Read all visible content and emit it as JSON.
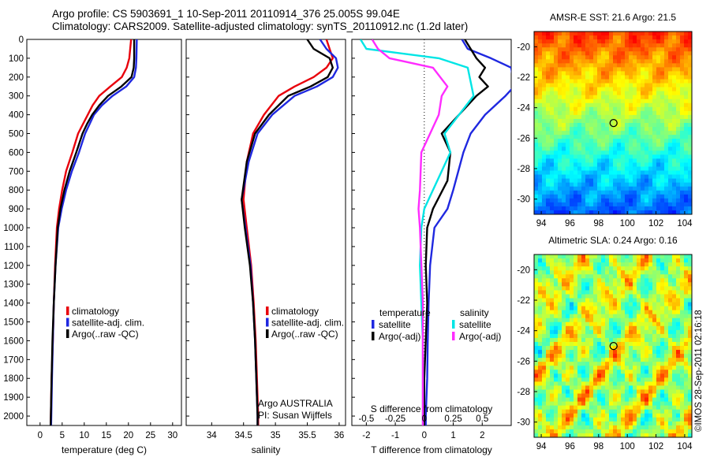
{
  "header": {
    "line1": "Argo profile: CS 5903691_1 10-Sep-2011 20110914_376 25.005S 99.04E",
    "line2": "Climatology: CARS2009. Satellite-adjusted climatology: synTS_20110912.nc (1.2d later)"
  },
  "stamp": "©IMOS 28-Sep-2011 02:16:18",
  "colors": {
    "climatology": "#e8000b",
    "satellite": "#1f28e0",
    "argo": "#000000",
    "sat_salinity": "#00e5e5",
    "argo_salinity": "#ff2cff"
  },
  "chart_data": [
    {
      "type": "line",
      "id": "temperature",
      "xlabel": "temperature (deg C)",
      "ylabel": "",
      "xlim": [
        -3,
        32
      ],
      "ylim": [
        2050,
        0
      ],
      "xticks": [
        "0",
        "5",
        "10",
        "15",
        "20",
        "25",
        "30"
      ],
      "yticks": [
        "0",
        "100",
        "200",
        "300",
        "400",
        "500",
        "600",
        "700",
        "800",
        "900",
        "1000",
        "1100",
        "1200",
        "1300",
        "1400",
        "1500",
        "1600",
        "1700",
        "1800",
        "1900",
        "2000"
      ],
      "legend": [
        "climatology",
        "satellite-adj. clim.",
        "Argo(..raw -QC)"
      ],
      "series": [
        {
          "name": "climatology",
          "x": [
            20.6,
            20.2,
            19.6,
            18.5,
            15.9,
            13.4,
            11.9,
            10.8,
            9.7,
            8.6,
            7.3,
            5.9,
            5.0,
            4.3,
            3.8,
            3.4,
            3.1,
            2.9,
            2.6,
            2.4
          ],
          "y": [
            0,
            100,
            150,
            200,
            250,
            300,
            350,
            400,
            450,
            500,
            600,
            700,
            800,
            900,
            1000,
            1200,
            1400,
            1600,
            1800,
            2050
          ]
        },
        {
          "name": "satellite-adj. clim.",
          "x": [
            21.9,
            21.8,
            21.7,
            21.3,
            19.5,
            16.4,
            14.0,
            12.2,
            11.2,
            10.2,
            8.8,
            7.2,
            5.9,
            4.9,
            4.1,
            3.5,
            3.1,
            2.9,
            2.7,
            2.5
          ],
          "y": [
            0,
            100,
            150,
            200,
            250,
            300,
            350,
            400,
            450,
            500,
            600,
            700,
            800,
            900,
            1000,
            1200,
            1400,
            1600,
            1800,
            2050
          ]
        },
        {
          "name": "Argo(..raw -QC)",
          "x": [
            21.3,
            21.3,
            21.2,
            20.7,
            18.4,
            15.4,
            13.4,
            11.8,
            10.6,
            9.6,
            8.2,
            6.7,
            5.5,
            4.6,
            4.0,
            3.5,
            3.1,
            2.8,
            2.6,
            2.4
          ],
          "y": [
            0,
            100,
            150,
            200,
            250,
            300,
            350,
            400,
            450,
            500,
            600,
            700,
            800,
            900,
            1000,
            1200,
            1400,
            1600,
            1800,
            2050
          ]
        }
      ]
    },
    {
      "type": "line",
      "id": "salinity",
      "xlabel": "salinity",
      "ylabel": "",
      "xlim": [
        33.6,
        36.1
      ],
      "ylim": [
        2050,
        0
      ],
      "xticks": [
        "34",
        "34.5",
        "35",
        "35.5",
        "36"
      ],
      "legend": [
        "climatology",
        "satellite-adj. clim.",
        "Argo(..raw -QC)"
      ],
      "annotation": [
        "Argo AUSTRALIA",
        "PI: Susan Wijffels"
      ],
      "series": [
        {
          "name": "climatology",
          "x": [
            35.8,
            35.85,
            35.9,
            35.8,
            35.6,
            35.3,
            35.05,
            34.82,
            34.65,
            34.55,
            34.5,
            34.55,
            34.62,
            34.66,
            34.69,
            34.71,
            34.73,
            34.73
          ],
          "y": [
            0,
            50,
            100,
            150,
            200,
            250,
            300,
            400,
            500,
            650,
            850,
            1000,
            1200,
            1400,
            1600,
            1800,
            2000,
            2050
          ]
        },
        {
          "name": "satellite-adj. clim.",
          "x": [
            35.7,
            35.8,
            35.95,
            35.98,
            35.9,
            35.65,
            35.3,
            34.95,
            34.72,
            34.58,
            34.47,
            34.53,
            34.61,
            34.65,
            34.68,
            34.7,
            34.72,
            34.72
          ],
          "y": [
            0,
            50,
            100,
            150,
            200,
            250,
            300,
            400,
            500,
            650,
            850,
            1000,
            1200,
            1400,
            1600,
            1800,
            2000,
            2050
          ]
        },
        {
          "name": "Argo(..raw -QC)",
          "x": [
            35.5,
            35.6,
            35.85,
            35.9,
            35.82,
            35.55,
            35.2,
            34.9,
            34.68,
            34.55,
            34.47,
            34.52,
            34.6,
            34.65,
            34.68,
            34.7,
            34.72,
            34.72
          ],
          "y": [
            0,
            50,
            100,
            150,
            200,
            250,
            300,
            400,
            500,
            650,
            850,
            1000,
            1200,
            1400,
            1600,
            1800,
            2000,
            2050
          ]
        }
      ]
    },
    {
      "type": "line",
      "id": "difference",
      "xlabel": "T difference from climatology",
      "top_label": "S difference from climatology",
      "xlim": [
        -2.5,
        3.0
      ],
      "ylim": [
        2050,
        0
      ],
      "xticks": [
        "-2",
        "-1",
        "0",
        "1",
        "2"
      ],
      "top_ticks": [
        "-0.5",
        "-0.25",
        "0",
        "0.25",
        "0.5"
      ],
      "legend_titles": [
        "temperature",
        "salinity"
      ],
      "legend": [
        "satellite",
        "Argo(-adj)",
        "satellite",
        "Argo(-adj)"
      ],
      "series": [
        {
          "name": "satellite",
          "x": [
            1.3,
            1.5,
            2.3,
            3.0,
            3.1,
            2.8,
            2.1,
            1.6,
            1.35,
            1.0,
            0.8,
            0.35,
            0.2,
            0.15,
            0.12,
            0.1,
            0.05,
            0.05
          ],
          "y": [
            0,
            50,
            100,
            150,
            250,
            300,
            400,
            500,
            600,
            800,
            900,
            1000,
            1200,
            1400,
            1600,
            1800,
            2000,
            2050
          ]
        },
        {
          "name": "Argo(-adj)",
          "x": [
            1.4,
            1.6,
            1.8,
            2.1,
            1.9,
            2.2,
            1.8,
            1.2,
            0.6,
            0.9,
            0.8,
            0.3,
            0.1,
            0.05,
            0.1,
            0.05,
            0.0,
            0.0
          ],
          "y": [
            0,
            50,
            100,
            150,
            200,
            250,
            300,
            400,
            500,
            600,
            750,
            900,
            1000,
            1200,
            1400,
            1600,
            1800,
            2050
          ]
        },
        {
          "name": "satellite",
          "x": [
            -2.2,
            -2.0,
            0.5,
            1.5,
            1.7,
            1.2,
            0.7,
            0.9,
            0.6,
            0.3,
            0.0,
            -0.1,
            -0.15,
            -0.1,
            -0.05,
            -0.05,
            -0.05
          ],
          "y": [
            0,
            50,
            100,
            150,
            300,
            400,
            500,
            600,
            700,
            800,
            900,
            1000,
            1200,
            1400,
            1600,
            1800,
            2050
          ]
        },
        {
          "name": "Argo(-adj)",
          "x": [
            -1.8,
            -1.6,
            -1.2,
            0.3,
            0.8,
            0.6,
            0.5,
            0.2,
            -0.1,
            -0.15,
            -0.2,
            -0.15,
            -0.1,
            -0.05,
            -0.05,
            -0.05,
            -0.05
          ],
          "y": [
            0,
            50,
            100,
            150,
            250,
            300,
            400,
            500,
            600,
            800,
            900,
            1000,
            1200,
            1400,
            1600,
            1800,
            2050
          ]
        }
      ]
    },
    {
      "type": "heatmap",
      "id": "sst",
      "title": "AMSR-E SST: 21.6 Argo: 21.5",
      "xlim": [
        93.5,
        104.5
      ],
      "ylim": [
        -31,
        -19
      ],
      "xticks": [
        "94",
        "96",
        "98",
        "100",
        "102",
        "104"
      ],
      "yticks": [
        "-20",
        "-22",
        "-24",
        "-26",
        "-28",
        "-30"
      ],
      "marker": {
        "lon": 99.04,
        "lat": -25.005
      }
    },
    {
      "type": "heatmap",
      "id": "sla",
      "title": "Altimetric SLA: 0.24 Argo: 0.16",
      "xlim": [
        93.5,
        104.5
      ],
      "ylim": [
        -31,
        -19
      ],
      "xticks": [
        "94",
        "96",
        "98",
        "100",
        "102",
        "104"
      ],
      "yticks": [
        "-20",
        "-22",
        "-24",
        "-26",
        "-28",
        "-30"
      ],
      "marker": {
        "lon": 99.04,
        "lat": -25.005
      }
    }
  ]
}
